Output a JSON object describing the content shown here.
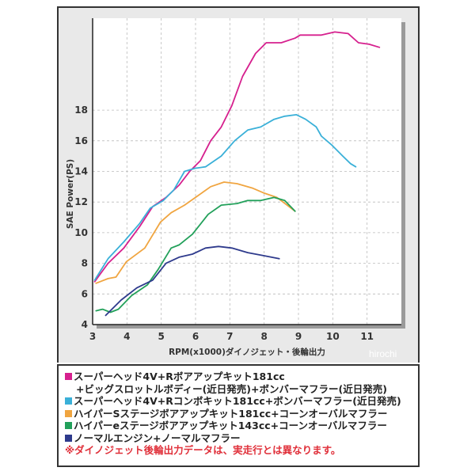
{
  "chart_data": {
    "type": "line",
    "xlabel": "RPM(x1000)ダイノジェット・後輪出力",
    "ylabel": "SAE Power(PS)",
    "xlim": [
      3,
      12
    ],
    "ylim": [
      4,
      24
    ],
    "xticks": [
      3,
      4,
      5,
      6,
      7,
      8,
      9,
      10,
      11
    ],
    "yticks": [
      4,
      6,
      8,
      10,
      12,
      14,
      16,
      18
    ],
    "grid": true,
    "series": [
      {
        "name": "スーパーヘッド4V+Rボアアップキット181cc +ビッグスロットルボディー(近日発売)+ボンバーマフラー(近日発売)",
        "color": "#d6208e",
        "points": [
          [
            3.06,
            6.8
          ],
          [
            3.45,
            8.0
          ],
          [
            3.91,
            9.0
          ],
          [
            4.37,
            10.4
          ],
          [
            4.75,
            11.7
          ],
          [
            5.14,
            12.3
          ],
          [
            5.52,
            13.1
          ],
          [
            5.83,
            14.0
          ],
          [
            6.14,
            14.7
          ],
          [
            6.44,
            16.0
          ],
          [
            6.75,
            16.9
          ],
          [
            7.06,
            18.3
          ],
          [
            7.37,
            20.2
          ],
          [
            7.75,
            21.7
          ],
          [
            8.06,
            22.4
          ],
          [
            8.5,
            22.4
          ],
          [
            8.9,
            22.7
          ],
          [
            9.05,
            22.9
          ],
          [
            9.36,
            22.9
          ],
          [
            9.67,
            22.9
          ],
          [
            10.06,
            23.1
          ],
          [
            10.45,
            23.0
          ],
          [
            10.75,
            22.4
          ],
          [
            11.06,
            22.3
          ],
          [
            11.36,
            22.1
          ]
        ]
      },
      {
        "name": "スーパーヘッド4V+Rコンボキット181cc+ボンバーマフラー(近日発売)",
        "color": "#3ab0d8",
        "points": [
          [
            3.06,
            6.9
          ],
          [
            3.45,
            8.3
          ],
          [
            3.91,
            9.4
          ],
          [
            4.37,
            10.6
          ],
          [
            4.68,
            11.6
          ],
          [
            5.06,
            12.1
          ],
          [
            5.37,
            12.8
          ],
          [
            5.68,
            14.0
          ],
          [
            5.98,
            14.2
          ],
          [
            6.29,
            14.3
          ],
          [
            6.75,
            15.0
          ],
          [
            7.14,
            16.0
          ],
          [
            7.52,
            16.7
          ],
          [
            7.9,
            16.9
          ],
          [
            8.29,
            17.4
          ],
          [
            8.6,
            17.6
          ],
          [
            8.94,
            17.7
          ],
          [
            9.21,
            17.4
          ],
          [
            9.52,
            16.9
          ],
          [
            9.67,
            16.3
          ],
          [
            9.98,
            15.7
          ],
          [
            10.29,
            15.0
          ],
          [
            10.52,
            14.5
          ],
          [
            10.67,
            14.3
          ]
        ]
      },
      {
        "name": "ハイパーSステージボアアップキット181cc+コーンオーバルマフラー",
        "color": "#f0a540",
        "points": [
          [
            3.1,
            6.7
          ],
          [
            3.45,
            7.0
          ],
          [
            3.68,
            7.1
          ],
          [
            3.98,
            8.1
          ],
          [
            4.52,
            9.0
          ],
          [
            4.98,
            10.7
          ],
          [
            5.29,
            11.3
          ],
          [
            5.68,
            11.8
          ],
          [
            6.06,
            12.4
          ],
          [
            6.44,
            13.0
          ],
          [
            6.83,
            13.3
          ],
          [
            7.21,
            13.2
          ],
          [
            7.67,
            12.9
          ],
          [
            7.98,
            12.6
          ],
          [
            8.37,
            12.3
          ],
          [
            8.67,
            11.8
          ],
          [
            8.9,
            11.4
          ]
        ]
      },
      {
        "name": "ハイパーeステージボアアップキット143cc+コーンオーバルマフラー",
        "color": "#22a05a",
        "points": [
          [
            3.1,
            4.9
          ],
          [
            3.29,
            5.0
          ],
          [
            3.52,
            4.8
          ],
          [
            3.75,
            5.0
          ],
          [
            4.14,
            5.9
          ],
          [
            4.6,
            6.6
          ],
          [
            4.91,
            7.6
          ],
          [
            5.29,
            9.0
          ],
          [
            5.52,
            9.2
          ],
          [
            5.91,
            9.9
          ],
          [
            6.37,
            11.2
          ],
          [
            6.75,
            11.8
          ],
          [
            7.21,
            11.9
          ],
          [
            7.52,
            12.1
          ],
          [
            7.9,
            12.1
          ],
          [
            8.29,
            12.3
          ],
          [
            8.6,
            12.1
          ],
          [
            8.9,
            11.4
          ]
        ]
      },
      {
        "name": "ノーマルエンジン+ノーマルマフラー",
        "color": "#2e3a8c",
        "points": [
          [
            3.38,
            4.6
          ],
          [
            3.83,
            5.6
          ],
          [
            4.29,
            6.4
          ],
          [
            4.75,
            6.9
          ],
          [
            5.14,
            8.0
          ],
          [
            5.52,
            8.4
          ],
          [
            5.91,
            8.6
          ],
          [
            6.29,
            9.0
          ],
          [
            6.67,
            9.1
          ],
          [
            7.06,
            9.0
          ],
          [
            7.52,
            8.7
          ],
          [
            7.98,
            8.5
          ],
          [
            8.44,
            8.3
          ]
        ]
      }
    ]
  },
  "legend": {
    "line1": "スーパーヘッド4V+Rボアアップキット181cc",
    "line1b": "+ビッグスロットルボディー(近日発売)+ボンバーマフラー(近日発売)",
    "line2": "スーパーヘッド4V+Rコンボキット181cc+ボンバーマフラー(近日発売)",
    "line3": "ハイパーSステージボアアップキット181cc+コーンオーバルマフラー",
    "line4": "ハイパーeステージボアアップキット143cc+コーンオーバルマフラー",
    "line5": "ノーマルエンジン+ノーマルマフラー",
    "note": "※ダイノジェット後輪出力データは、実走行とは異なります。"
  },
  "watermark": "hirochi"
}
